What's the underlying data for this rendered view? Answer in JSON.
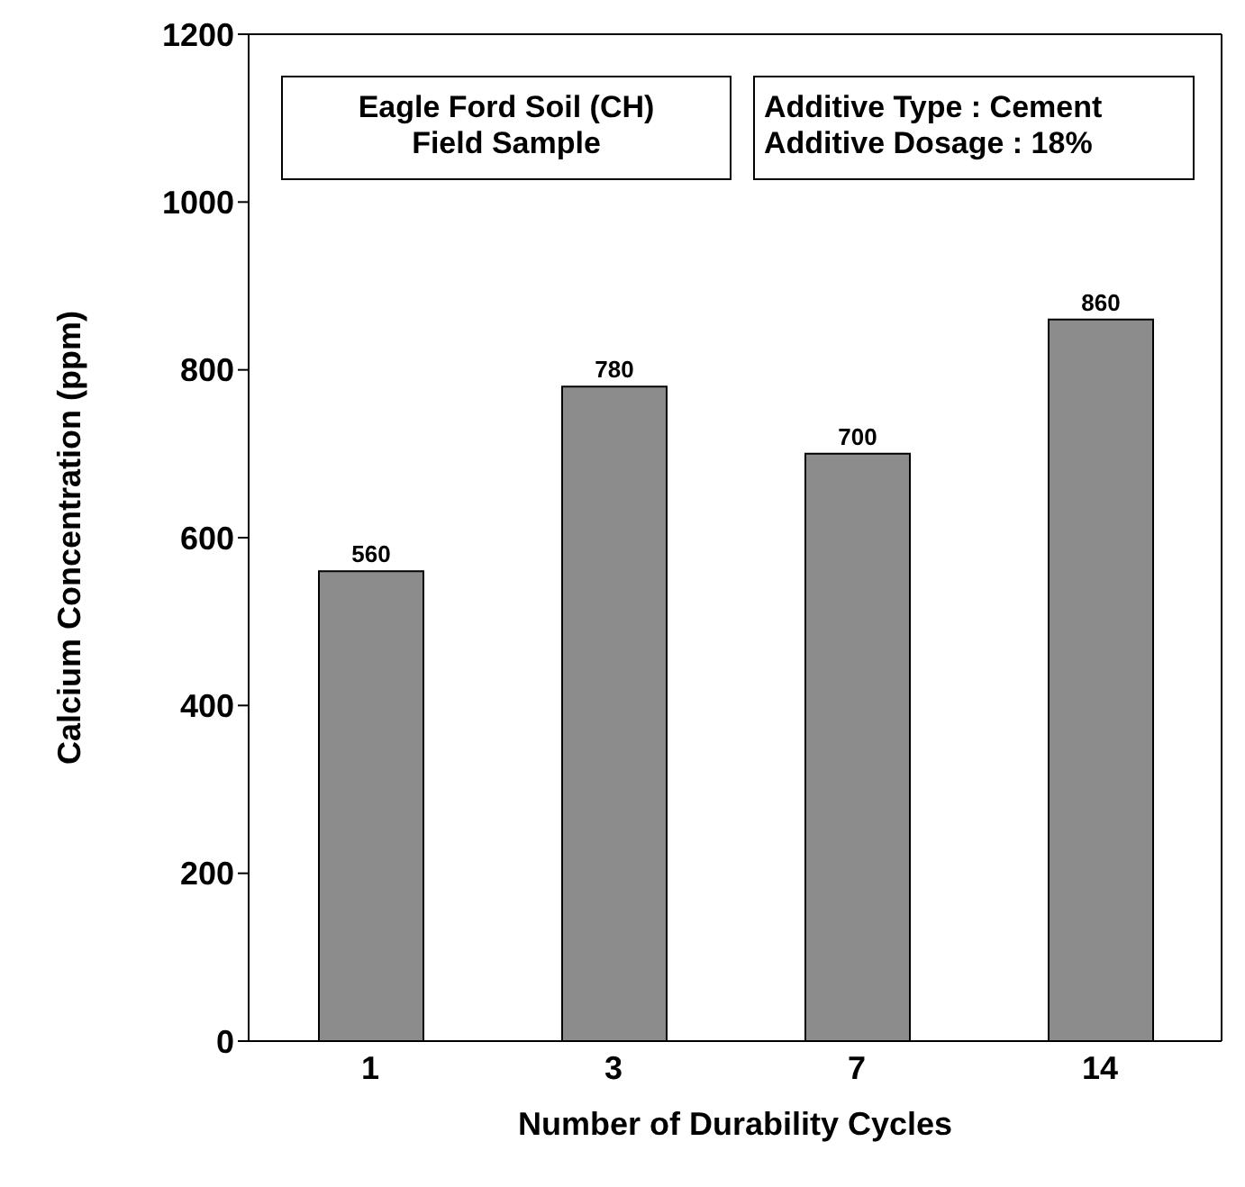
{
  "chart_data": {
    "type": "bar",
    "xlabel": "Number of Durability Cycles",
    "ylabel": "Calcium Concentration (ppm)",
    "categories": [
      "1",
      "3",
      "7",
      "14"
    ],
    "values": [
      560,
      780,
      700,
      860
    ],
    "color": "#8c8c8c",
    "ylim": [
      0,
      1200
    ],
    "yticks": [
      0,
      200,
      400,
      600,
      800,
      1000,
      1200
    ],
    "data_labels": true,
    "grid": false,
    "annotations": [
      "Eagle Ford Soil (CH)\nField Sample",
      "Additive Type : Cement\nAdditive Dosage : 18%"
    ]
  }
}
